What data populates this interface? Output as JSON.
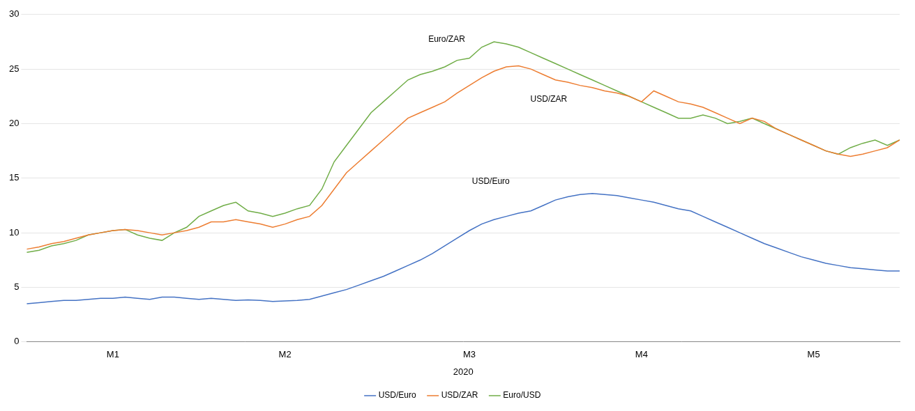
{
  "chart_data": {
    "type": "line",
    "xlabel": "2020",
    "categories": [
      null,
      null,
      null,
      null,
      null,
      null,
      null,
      "M1",
      null,
      null,
      null,
      null,
      null,
      null,
      null,
      null,
      null,
      null,
      null,
      null,
      null,
      "M2",
      null,
      null,
      null,
      null,
      null,
      null,
      null,
      null,
      null,
      null,
      null,
      null,
      null,
      null,
      "M3",
      null,
      null,
      null,
      null,
      null,
      null,
      null,
      null,
      null,
      null,
      null,
      null,
      null,
      "M4",
      null,
      null,
      null,
      null,
      null,
      null,
      null,
      null,
      null,
      null,
      null,
      null,
      null,
      "M5",
      null,
      null,
      null,
      null,
      null,
      null,
      null
    ],
    "series": [
      {
        "name": "USD/Euro",
        "color": "#4472C4",
        "values": [
          3.5,
          3.6,
          3.7,
          3.8,
          3.8,
          3.9,
          4.0,
          4.0,
          4.1,
          4.0,
          3.9,
          4.1,
          4.1,
          4.0,
          3.9,
          4.0,
          3.9,
          3.8,
          3.85,
          3.8,
          3.7,
          3.75,
          3.8,
          3.9,
          4.2,
          4.5,
          4.8,
          5.2,
          5.6,
          6.0,
          6.5,
          7.0,
          7.5,
          8.1,
          8.8,
          9.5,
          10.2,
          10.8,
          11.2,
          11.5,
          11.8,
          12.0,
          12.5,
          13.0,
          13.3,
          13.5,
          13.6,
          13.5,
          13.4,
          13.2,
          13.0,
          12.8,
          12.5,
          12.2,
          12.0,
          11.5,
          11.0,
          10.5,
          10.0,
          9.5,
          9.0,
          8.6,
          8.2,
          7.8,
          7.5,
          7.2,
          7.0,
          6.8,
          6.7,
          6.6,
          6.5,
          6.5
        ]
      },
      {
        "name": "USD/ZAR",
        "color": "#ED7D31",
        "values": [
          8.5,
          8.7,
          9.0,
          9.2,
          9.5,
          9.8,
          10.0,
          10.2,
          10.3,
          10.2,
          10.0,
          9.8,
          10.0,
          10.2,
          10.5,
          11.0,
          11.0,
          11.2,
          11.0,
          10.8,
          10.5,
          10.8,
          11.2,
          11.5,
          12.5,
          14.0,
          15.5,
          16.5,
          17.5,
          18.5,
          19.5,
          20.5,
          21.0,
          21.5,
          22.0,
          22.8,
          23.5,
          24.2,
          24.8,
          25.2,
          25.3,
          25.0,
          24.5,
          24.0,
          23.8,
          23.5,
          23.3,
          23.0,
          22.8,
          22.5,
          22.0,
          23.0,
          22.5,
          22.0,
          21.8,
          21.5,
          21.0,
          20.5,
          20.0,
          20.5,
          20.2,
          19.5,
          19.0,
          18.5,
          18.0,
          17.5,
          17.2,
          17.0,
          17.2,
          17.5,
          17.8,
          18.5
        ]
      },
      {
        "name": "Euro/USD",
        "color": "#70AD47",
        "values": [
          8.2,
          8.4,
          8.8,
          9.0,
          9.3,
          9.8,
          10.0,
          10.2,
          10.3,
          9.8,
          9.5,
          9.3,
          10.0,
          10.5,
          11.5,
          12.0,
          12.5,
          12.8,
          12.0,
          11.8,
          11.5,
          11.8,
          12.2,
          12.5,
          14.0,
          16.5,
          18.0,
          19.5,
          21.0,
          22.0,
          23.0,
          24.0,
          24.5,
          24.8,
          25.2,
          25.8,
          26.0,
          27.0,
          27.5,
          27.3,
          27.0,
          26.5,
          26.0,
          25.5,
          25.0,
          24.5,
          24.0,
          23.5,
          23.0,
          22.5,
          22.0,
          21.5,
          21.0,
          20.5,
          20.5,
          20.8,
          20.5,
          20.0,
          20.2,
          20.5,
          20.0,
          19.5,
          19.0,
          18.5,
          18.0,
          17.5,
          17.2,
          17.8,
          18.2,
          18.5,
          18.0,
          18.5
        ]
      }
    ],
    "ylim": [
      0,
      30
    ],
    "yticks": [
      0,
      5,
      10,
      15,
      20,
      25,
      30
    ],
    "grid": true,
    "legend": "bottom",
    "annotations": [
      "Euro/ZAR",
      "USD/ZAR",
      "USD/Euro"
    ]
  }
}
